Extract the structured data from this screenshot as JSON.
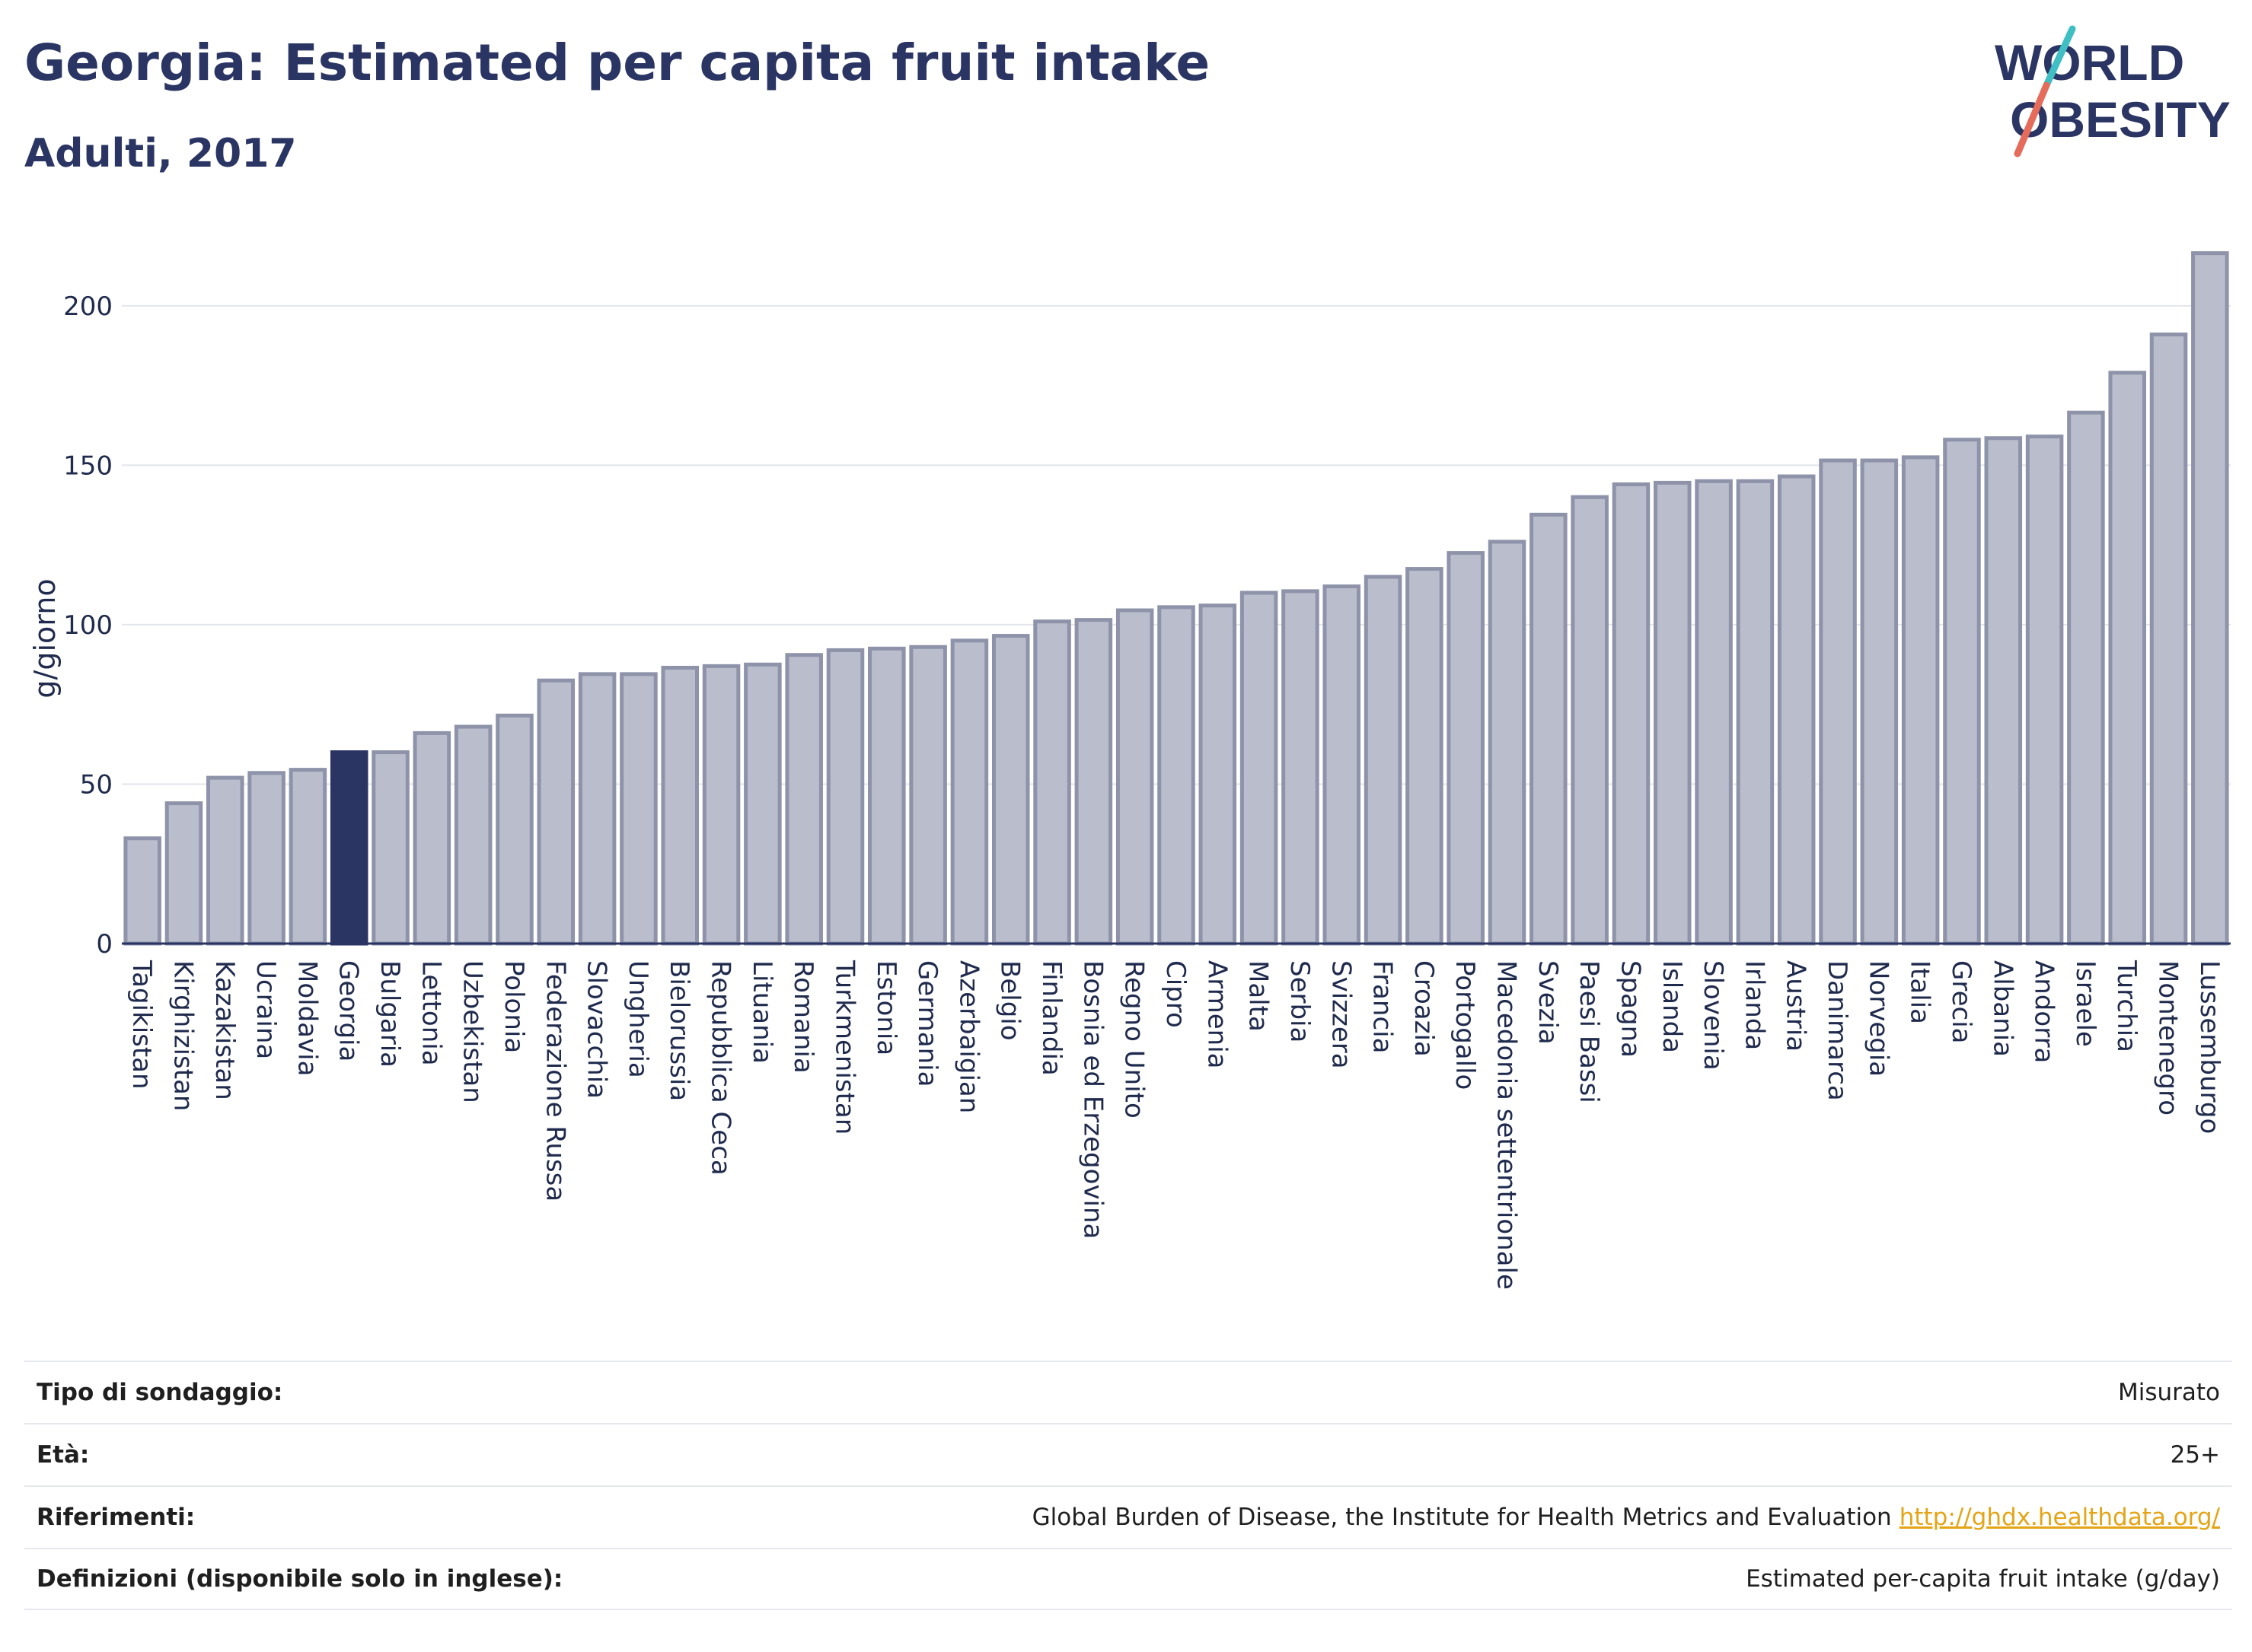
{
  "header": {
    "title": "Georgia: Estimated per capita fruit intake",
    "subtitle": "Adulti, 2017"
  },
  "logo": {
    "line1": "WORLD",
    "line2": "OBESITY"
  },
  "chart_data": {
    "type": "bar",
    "title": "Georgia: Estimated per capita fruit intake",
    "subtitle": "Adulti, 2017",
    "ylabel": "g/giorno",
    "xlabel": "",
    "ylim": [
      0,
      220
    ],
    "yticks": [
      0,
      50,
      100,
      150,
      200
    ],
    "grid": true,
    "highlight": "Georgia",
    "colors": {
      "bar": "#b9bdcc",
      "bar_edge": "#8e93aa",
      "highlight": "#2a3563"
    },
    "categories": [
      "Tagikistan",
      "Kirghizistan",
      "Kazakistan",
      "Ucraina",
      "Moldavia",
      "Georgia",
      "Bulgaria",
      "Lettonia",
      "Uzbekistan",
      "Polonia",
      "Federazione Russa",
      "Slovacchia",
      "Ungheria",
      "Bielorussia",
      "Repubblica Ceca",
      "Lituania",
      "Romania",
      "Turkmenistan",
      "Estonia",
      "Germania",
      "Azerbaigian",
      "Belgio",
      "Finlandia",
      "Bosnia ed Erzegovina",
      "Regno Unito",
      "Cipro",
      "Armenia",
      "Malta",
      "Serbia",
      "Svizzera",
      "Francia",
      "Croazia",
      "Portogallo",
      "Macedonia settentrionale",
      "Svezia",
      "Paesi Bassi",
      "Spagna",
      "Islanda",
      "Slovenia",
      "Irlanda",
      "Austria",
      "Danimarca",
      "Norvegia",
      "Italia",
      "Grecia",
      "Albania",
      "Andorra",
      "Israele",
      "Turchia",
      "Montenegro",
      "Lussemburgo"
    ],
    "values": [
      33,
      44,
      52,
      53.5,
      54.5,
      60,
      60,
      66,
      68,
      71.5,
      82.5,
      84.5,
      84.5,
      86.5,
      87,
      87.5,
      90.5,
      92,
      92.5,
      93,
      95,
      96.5,
      101,
      101.5,
      104.5,
      105.5,
      106,
      110,
      110.5,
      112,
      115,
      117.5,
      122.5,
      126,
      134.5,
      140,
      144,
      144.5,
      145,
      145,
      146.5,
      151.5,
      151.5,
      152.5,
      158,
      158.5,
      159,
      166.5,
      179,
      191,
      216.5
    ]
  },
  "info": [
    {
      "label": "Tipo di sondaggio:",
      "value": "Misurato"
    },
    {
      "label": "Età:",
      "value": "25+"
    },
    {
      "label": "Riferimenti:",
      "value": "Global Burden of Disease, the Institute for Health Metrics and Evaluation",
      "link": "http://ghdx.healthdata.org/"
    },
    {
      "label": "Definizioni (disponibile solo in inglese):",
      "value": "Estimated per-capita fruit intake (g/day)"
    }
  ]
}
